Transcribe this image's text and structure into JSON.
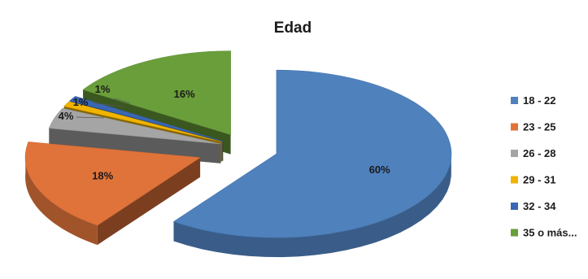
{
  "chart_data": {
    "type": "pie",
    "style": "3d-exploded",
    "title": "Edad",
    "legend_position": "right",
    "categories": [
      "18 - 22",
      "23 - 25",
      "26 - 28",
      "29 - 31",
      "32 - 34",
      "35 o más..."
    ],
    "values": [
      60,
      18,
      4,
      1,
      1,
      16
    ],
    "value_labels": [
      "60%",
      "18%",
      "4%",
      "1%",
      "1%",
      "16%"
    ],
    "colors": [
      "#4f81bd",
      "#e0733a",
      "#a5a5a5",
      "#f0b400",
      "#3a67b4",
      "#6a9e3a"
    ]
  }
}
